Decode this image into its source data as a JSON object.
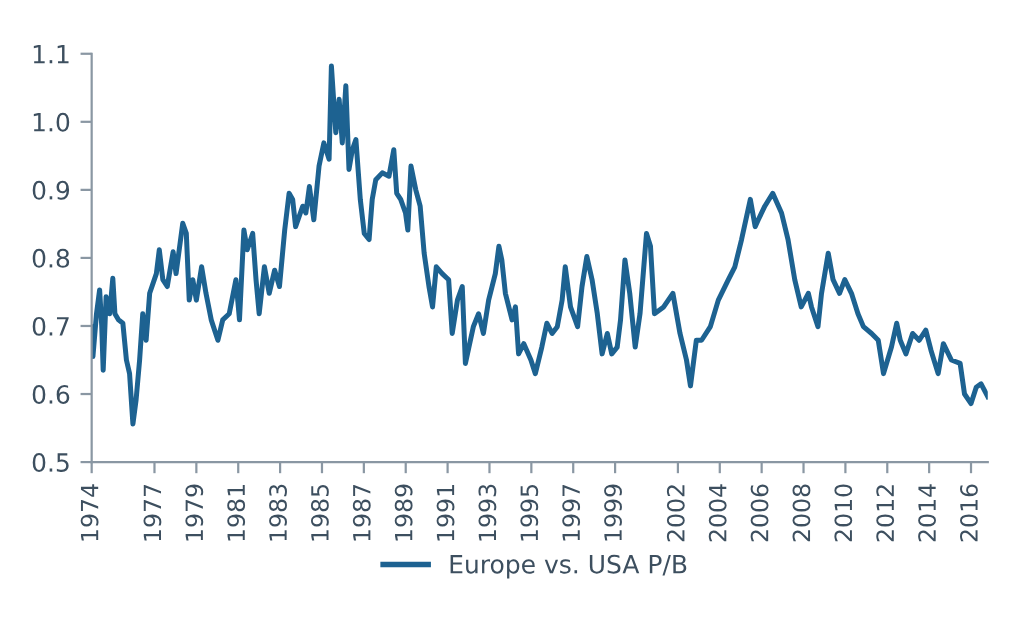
{
  "chart_data": {
    "type": "line",
    "legend": "bottom",
    "grid": false,
    "line_style": "solid",
    "marker": "none",
    "xlim": [
      1974,
      2016.8
    ],
    "ylim": [
      0.5,
      1.1
    ],
    "xticks": [
      1974,
      1977,
      1979,
      1981,
      1983,
      1985,
      1987,
      1989,
      1991,
      1993,
      1995,
      1997,
      1999,
      2002,
      2004,
      2006,
      2008,
      2010,
      2012,
      2014,
      2016
    ],
    "yticks": [
      {
        "value": 0.5,
        "label": "0.5"
      },
      {
        "value": 0.6,
        "label": "0.6"
      },
      {
        "value": 0.7,
        "label": "0.7"
      },
      {
        "value": 0.8,
        "label": "0.8"
      },
      {
        "value": 0.9,
        "label": "0.9"
      },
      {
        "value": 1.0,
        "label": "1.0"
      },
      {
        "value": 1.1,
        "label": "1.1"
      }
    ],
    "series": [
      {
        "name": "Europe vs. USA P/B",
        "color": "#1d6291",
        "x": [
          1974.0,
          1974.06,
          1974.23,
          1974.38,
          1974.48,
          1974.55,
          1974.69,
          1974.86,
          1975.01,
          1975.11,
          1975.28,
          1975.49,
          1975.66,
          1975.81,
          1975.97,
          1976.12,
          1976.29,
          1976.44,
          1976.6,
          1976.77,
          1977.09,
          1977.23,
          1977.4,
          1977.61,
          1977.89,
          1978.03,
          1978.35,
          1978.52,
          1978.66,
          1978.83,
          1979.0,
          1979.25,
          1979.46,
          1979.71,
          1980.03,
          1980.26,
          1980.57,
          1980.89,
          1981.06,
          1981.27,
          1981.43,
          1981.69,
          1981.85,
          1982.0,
          1982.25,
          1982.48,
          1982.74,
          1982.97,
          1983.22,
          1983.43,
          1983.6,
          1983.74,
          1984.08,
          1984.23,
          1984.4,
          1984.61,
          1984.86,
          1985.09,
          1985.34,
          1985.45,
          1985.66,
          1985.82,
          1985.97,
          1986.14,
          1986.29,
          1986.45,
          1986.62,
          1986.83,
          1987.02,
          1987.25,
          1987.4,
          1987.57,
          1987.88,
          1988.2,
          1988.43,
          1988.57,
          1988.76,
          1988.99,
          1989.1,
          1989.25,
          1989.48,
          1989.69,
          1989.88,
          1990.11,
          1990.28,
          1990.46,
          1990.74,
          1991.05,
          1991.22,
          1991.47,
          1991.7,
          1991.85,
          1992.02,
          1992.23,
          1992.48,
          1992.71,
          1992.96,
          1993.28,
          1993.45,
          1993.59,
          1993.76,
          1994.08,
          1994.24,
          1994.39,
          1994.64,
          1994.98,
          1995.19,
          1995.5,
          1995.74,
          1995.99,
          1996.24,
          1996.47,
          1996.62,
          1996.87,
          1997.21,
          1997.42,
          1997.65,
          1997.9,
          1998.15,
          1998.38,
          1998.63,
          1998.84,
          1999.1,
          1999.26,
          1999.47,
          1999.7,
          1999.96,
          2000.19,
          2000.5,
          2000.69,
          2000.88,
          2001.32,
          2001.76,
          2002.1,
          2002.41,
          2002.6,
          2002.88,
          2003.13,
          2003.55,
          2003.93,
          2004.41,
          2004.72,
          2005.04,
          2005.46,
          2005.69,
          2005.84,
          2006.15,
          2006.53,
          2006.95,
          2007.26,
          2007.58,
          2007.89,
          2008.23,
          2008.38,
          2008.69,
          2008.86,
          2009.18,
          2009.41,
          2009.72,
          2009.97,
          2010.29,
          2010.6,
          2010.86,
          2011.25,
          2011.57,
          2011.82,
          2012.2,
          2012.45,
          2012.62,
          2012.89,
          2013.21,
          2013.52,
          2013.84,
          2014.09,
          2014.43,
          2014.68,
          2015.06,
          2015.48,
          2015.69,
          2016.0,
          2016.25,
          2016.48,
          2016.8
        ],
        "values": [
          0.699,
          0.655,
          0.718,
          0.753,
          0.7,
          0.635,
          0.743,
          0.718,
          0.77,
          0.718,
          0.709,
          0.704,
          0.65,
          0.63,
          0.556,
          0.591,
          0.65,
          0.718,
          0.679,
          0.748,
          0.777,
          0.812,
          0.768,
          0.758,
          0.809,
          0.777,
          0.851,
          0.836,
          0.738,
          0.768,
          0.738,
          0.787,
          0.748,
          0.709,
          0.679,
          0.709,
          0.718,
          0.768,
          0.709,
          0.841,
          0.812,
          0.836,
          0.768,
          0.718,
          0.787,
          0.748,
          0.782,
          0.758,
          0.841,
          0.895,
          0.886,
          0.846,
          0.876,
          0.866,
          0.905,
          0.856,
          0.935,
          0.969,
          0.945,
          1.082,
          0.984,
          1.033,
          0.969,
          1.053,
          0.93,
          0.959,
          0.974,
          0.886,
          0.836,
          0.827,
          0.886,
          0.915,
          0.925,
          0.92,
          0.959,
          0.895,
          0.886,
          0.866,
          0.841,
          0.935,
          0.9,
          0.876,
          0.807,
          0.758,
          0.728,
          0.787,
          0.777,
          0.768,
          0.689,
          0.738,
          0.758,
          0.645,
          0.669,
          0.699,
          0.718,
          0.689,
          0.738,
          0.777,
          0.817,
          0.797,
          0.748,
          0.709,
          0.728,
          0.659,
          0.674,
          0.65,
          0.63,
          0.669,
          0.704,
          0.689,
          0.699,
          0.738,
          0.787,
          0.728,
          0.699,
          0.758,
          0.802,
          0.768,
          0.718,
          0.659,
          0.689,
          0.659,
          0.669,
          0.709,
          0.797,
          0.748,
          0.669,
          0.718,
          0.836,
          0.817,
          0.718,
          0.728,
          0.748,
          0.689,
          0.65,
          0.612,
          0.679,
          0.679,
          0.699,
          0.738,
          0.768,
          0.787,
          0.827,
          0.886,
          0.846,
          0.856,
          0.876,
          0.895,
          0.866,
          0.827,
          0.768,
          0.728,
          0.748,
          0.728,
          0.699,
          0.748,
          0.807,
          0.768,
          0.748,
          0.768,
          0.748,
          0.718,
          0.699,
          0.689,
          0.679,
          0.63,
          0.669,
          0.704,
          0.679,
          0.659,
          0.689,
          0.679,
          0.694,
          0.664,
          0.63,
          0.674,
          0.65,
          0.645,
          0.6,
          0.586,
          0.61,
          0.615,
          0.596
        ]
      }
    ]
  }
}
